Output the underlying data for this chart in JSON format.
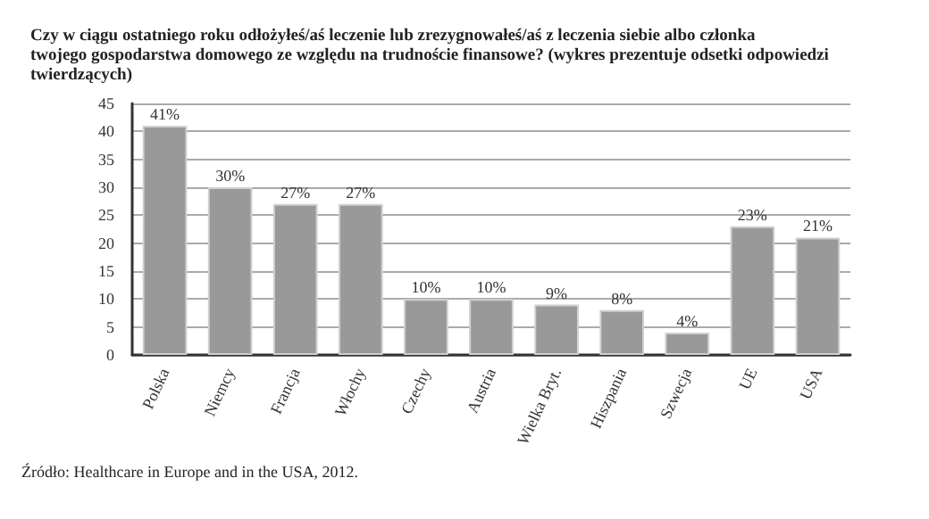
{
  "chart_data": {
    "type": "bar",
    "title": "Czy w ciągu ostatniego roku odłożyłeś/aś leczenie lub zrezygnowałeś/aś z leczenia siebie albo członka twojego gospodarstwa domowego ze względu na trudnoście finansowe? (wykres prezentuje odsetki odpowiedzi twierdzących)",
    "categories": [
      "Polska",
      "Niemcy",
      "Francja",
      "Włochy",
      "Czechy",
      "Austria",
      "Wielka Bryt.",
      "Hiszpania",
      "Szwecja",
      "UE",
      "USA"
    ],
    "values": [
      41,
      30,
      27,
      27,
      10,
      10,
      9,
      8,
      4,
      23,
      21
    ],
    "value_labels": [
      "41%",
      "30%",
      "27%",
      "27%",
      "10%",
      "10%",
      "9%",
      "8%",
      "4%",
      "23%",
      "21%"
    ],
    "color": "#999999",
    "ylim": [
      0,
      45
    ],
    "yticks": [
      0,
      5,
      10,
      15,
      20,
      25,
      30,
      35,
      40,
      45
    ],
    "grid": "y",
    "annotations": [
      "Źródło: Healthcare in Europe and in the USA, 2012."
    ]
  }
}
